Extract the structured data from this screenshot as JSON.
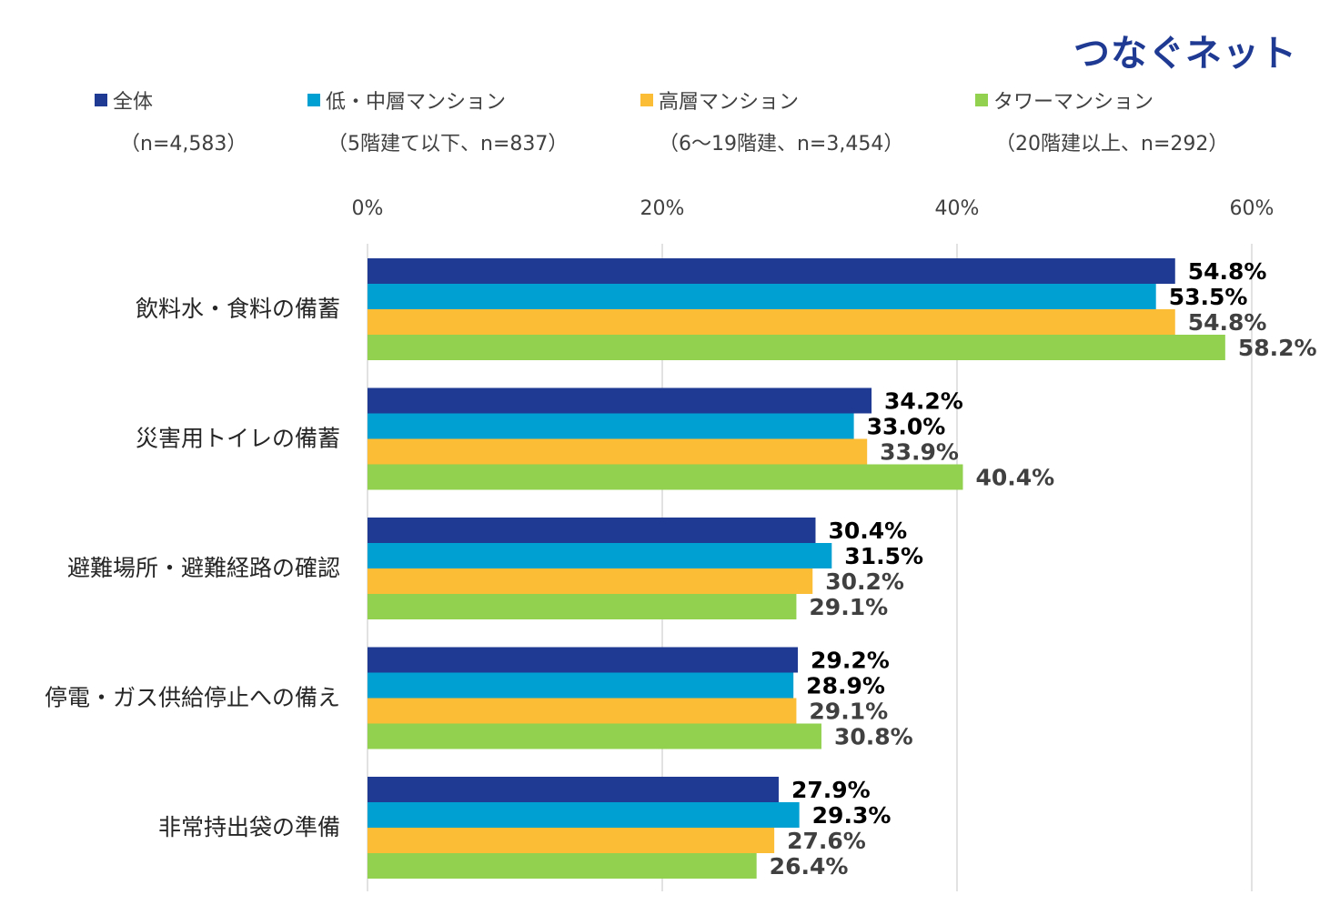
{
  "brand": "つなぐネット",
  "legend": [
    {
      "label": "全体",
      "sub": "（n=4,583）"
    },
    {
      "label": "低・中層マンション",
      "sub": "（5階建て以下、n=837）"
    },
    {
      "label": "高層マンション",
      "sub": "（6～19階建、n=3,454）"
    },
    {
      "label": "タワーマンション",
      "sub": "（20階建以上、n=292）"
    }
  ],
  "colors": {
    "series": [
      "#1f3a93",
      "#00a0d2",
      "#fbbc36",
      "#92d050"
    ],
    "label": [
      "#000000",
      "#000000",
      "#404040",
      "#404040"
    ],
    "grid": "#d9d9d9",
    "text": "#404040"
  },
  "chart_data": {
    "type": "bar",
    "orientation": "horizontal",
    "categories": [
      "飲料水・食料の備蓄",
      "災害用トイレの備蓄",
      "避難場所・避難経路の確認",
      "停電・ガス供給停止への備え",
      "非常持出袋の準備"
    ],
    "series": [
      {
        "name": "全体",
        "values": [
          54.8,
          34.2,
          30.4,
          29.2,
          27.9
        ]
      },
      {
        "name": "低・中層マンション",
        "values": [
          53.5,
          33.0,
          31.5,
          28.9,
          29.3
        ]
      },
      {
        "name": "高層マンション",
        "values": [
          54.8,
          33.9,
          30.2,
          29.1,
          27.6
        ]
      },
      {
        "name": "タワーマンション",
        "values": [
          58.2,
          40.4,
          29.1,
          30.8,
          26.4
        ]
      }
    ],
    "xlim": [
      0,
      60
    ],
    "x_ticks": [
      "0%",
      "20%",
      "40%",
      "60%"
    ],
    "tick_values": [
      0,
      20,
      40,
      60
    ],
    "value_suffix": "%",
    "grid": true,
    "legend_position": "top"
  }
}
